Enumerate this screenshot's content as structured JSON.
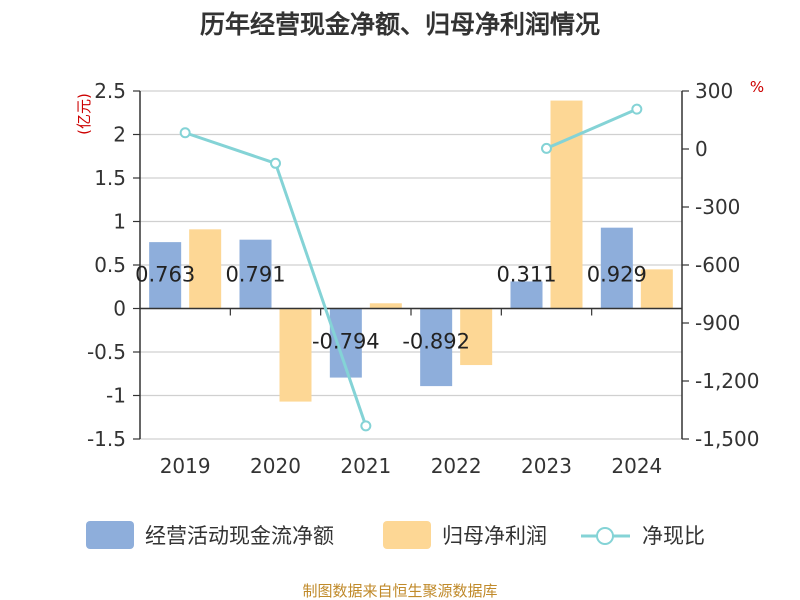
{
  "chart_data": {
    "type": "bar+line",
    "title": "历年经营现金净额、归母净利润情况",
    "categories": [
      "2019",
      "2020",
      "2021",
      "2022",
      "2023",
      "2024"
    ],
    "y_left": {
      "unit": "(亿元)",
      "ylim": [
        -1.5,
        2.5
      ],
      "ticks": [
        "2.5",
        "2",
        "1.5",
        "1",
        "0.5",
        "0",
        "-0.5",
        "-1",
        "-1.5"
      ]
    },
    "y_right": {
      "unit": "%",
      "ylim": [
        -1500,
        300
      ],
      "ticks": [
        "300",
        "0",
        "-300",
        "-600",
        "-900",
        "-1,200",
        "-1,500"
      ]
    },
    "series": [
      {
        "name": "经营活动现金流净额",
        "type": "bar",
        "axis": "left",
        "values": [
          0.763,
          0.791,
          -0.794,
          -0.892,
          0.311,
          0.929
        ],
        "labels": [
          "0.763",
          "0.791",
          "-0.794",
          "-0.892",
          "0.311",
          "0.929"
        ]
      },
      {
        "name": "归母净利润",
        "type": "bar",
        "axis": "left",
        "values": [
          0.91,
          -1.07,
          0.06,
          -0.65,
          2.39,
          0.45
        ]
      },
      {
        "name": "净现比",
        "type": "line",
        "axis": "right",
        "values": [
          84,
          -74,
          -1432,
          null,
          3,
          206
        ]
      }
    ],
    "source": "制图数据来自恒生聚源数据库"
  },
  "colors": {
    "bar_cash": "#8eaedb",
    "bar_profit": "#fdd795",
    "line": "#84d3d6",
    "unit_text": "#cc0000",
    "source_text": "#c08a2a",
    "grid": "#d0d0d0",
    "axis": "#333333"
  }
}
